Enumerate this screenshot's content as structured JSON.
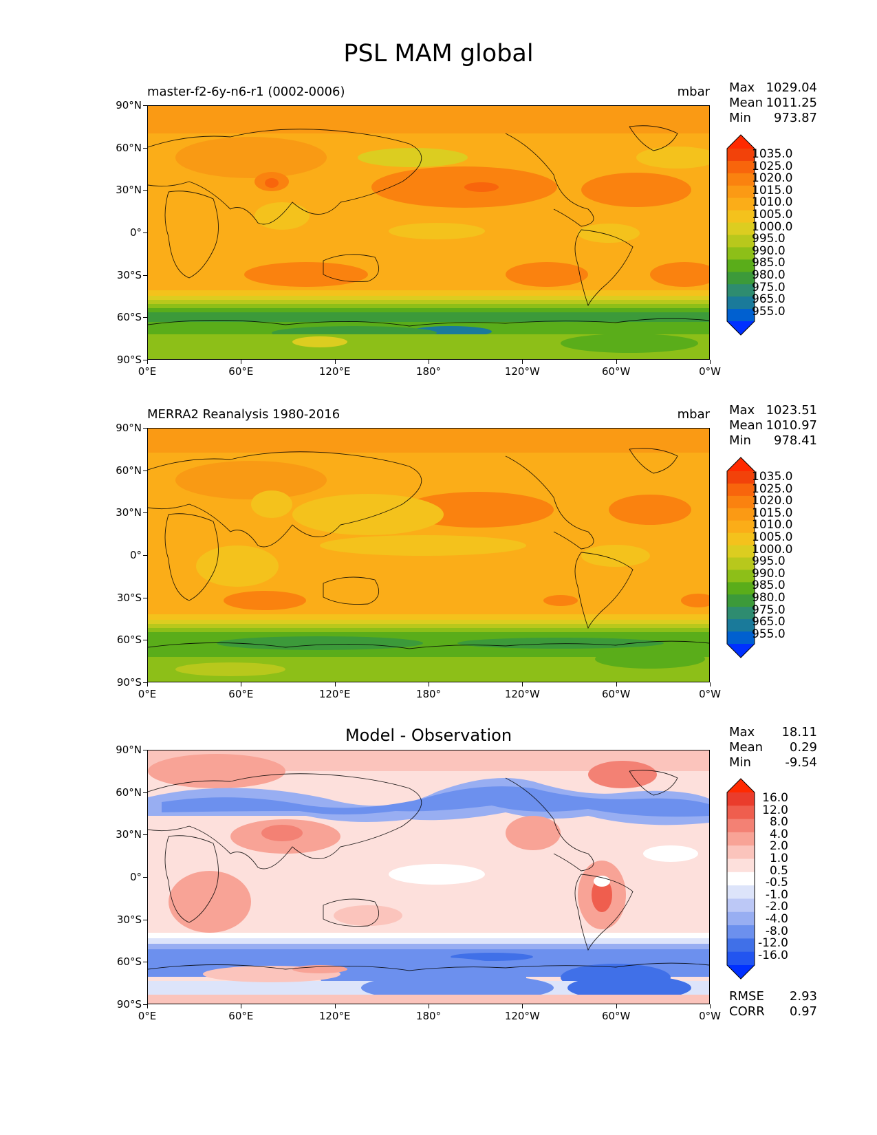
{
  "title": "PSL MAM global",
  "lat_ticks": [
    "90°N",
    "60°N",
    "30°N",
    "0°",
    "30°S",
    "60°S",
    "90°S"
  ],
  "lon_ticks": [
    "0°E",
    "60°E",
    "120°E",
    "180°",
    "120°W",
    "60°W",
    "0°W"
  ],
  "colors": {
    "abs_levels": [
      "#0030ff",
      "#0060d0",
      "#1a7a9a",
      "#2e8c70",
      "#3c9a3a",
      "#5aad1a",
      "#8dbf18",
      "#b8c81c",
      "#dccd20",
      "#f4c21c",
      "#fbad18",
      "#fb9a14",
      "#fa820f",
      "#f8650c",
      "#f2420a",
      "#ff2a00"
    ],
    "diff_levels": [
      "#0030ff",
      "#2255f0",
      "#4070e8",
      "#6c90ee",
      "#98aef2",
      "#bcc8f6",
      "#dde4fa",
      "#ffffff",
      "#fde0dc",
      "#fbc4bc",
      "#f8a396",
      "#f38174",
      "#ef5e4e",
      "#ea3c2c",
      "#ff2a00"
    ]
  },
  "panels": [
    {
      "subtitle": "master-f2-6y-n6-r1 (0002-0006)",
      "units": "mbar",
      "stats": [
        {
          "label": "Max",
          "value": "1029.04"
        },
        {
          "label": "Mean",
          "value": "1011.25"
        },
        {
          "label": "Min",
          "value": "973.87"
        }
      ],
      "colorbar_labels": [
        "1035.0",
        "1025.0",
        "1020.0",
        "1015.0",
        "1010.0",
        "1005.0",
        "1000.0",
        "995.0",
        "990.0",
        "985.0",
        "980.0",
        "975.0",
        "965.0",
        "955.0"
      ]
    },
    {
      "subtitle": "MERRA2 Reanalysis 1980-2016",
      "units": "mbar",
      "stats": [
        {
          "label": "Max",
          "value": "1023.51"
        },
        {
          "label": "Mean",
          "value": "1010.97"
        },
        {
          "label": "Min",
          "value": "978.41"
        }
      ],
      "colorbar_labels": [
        "1035.0",
        "1025.0",
        "1020.0",
        "1015.0",
        "1010.0",
        "1005.0",
        "1000.0",
        "995.0",
        "990.0",
        "985.0",
        "980.0",
        "975.0",
        "965.0",
        "955.0"
      ]
    },
    {
      "center_title": "Model - Observation",
      "stats": [
        {
          "label": "Max",
          "value": "18.11"
        },
        {
          "label": "Mean",
          "value": "0.29"
        },
        {
          "label": "Min",
          "value": "-9.54"
        }
      ],
      "colorbar_labels": [
        "16.0",
        "12.0",
        "8.0",
        "4.0",
        "2.0",
        "1.0",
        "0.5",
        "-0.5",
        "-1.0",
        "-2.0",
        "-4.0",
        "-8.0",
        "-12.0",
        "-16.0"
      ],
      "footer_stats": [
        {
          "label": "RMSE",
          "value": "2.93"
        },
        {
          "label": "CORR",
          "value": "0.97"
        }
      ]
    }
  ]
}
